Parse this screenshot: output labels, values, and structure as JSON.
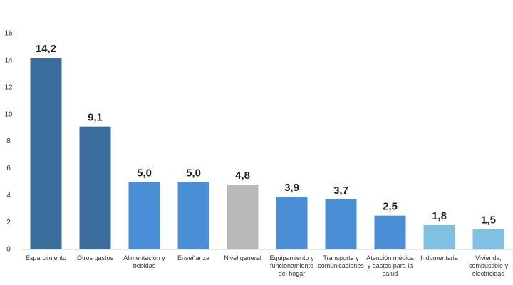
{
  "chart_data": {
    "type": "bar",
    "categories": [
      "Esparcimiento",
      "Otros gastos",
      "Alimentación y bebidas",
      "Enseñanza",
      "Nivel general",
      "Equipamiento y funcionamiento del hogar",
      "Transporte y comunicaciones",
      "Atención médica y gastos para la salud",
      "Indumentaria",
      "Vivienda, combustible y electricidad"
    ],
    "values": [
      14.2,
      9.1,
      5.0,
      5.0,
      4.8,
      3.9,
      3.7,
      2.5,
      1.8,
      1.5
    ],
    "value_labels": [
      "14,2",
      "9,1",
      "5,0",
      "5,0",
      "4,8",
      "3,9",
      "3,7",
      "2,5",
      "1,8",
      "1,5"
    ],
    "colors": [
      "#3b6d9c",
      "#3b6d9c",
      "#4a8ed6",
      "#4a8ed6",
      "#b9b9b9",
      "#4a8ed6",
      "#4a8ed6",
      "#4a8ed6",
      "#7ec1e3",
      "#7ec1e3"
    ],
    "ylim": [
      0,
      16
    ],
    "yticks": [
      0,
      2,
      4,
      6,
      8,
      10,
      12,
      14,
      16
    ],
    "grid": false
  }
}
